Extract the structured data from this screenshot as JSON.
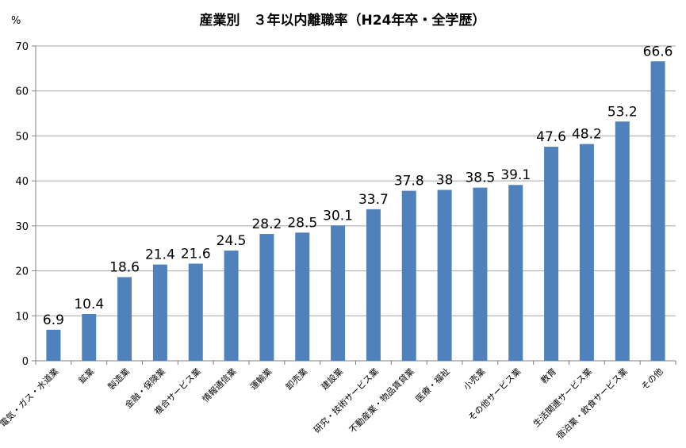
{
  "chart_data": {
    "type": "bar",
    "title": "産業別　３年以内離職率（H24年卒・全学歴）",
    "unit_label": "%",
    "ylim": [
      0,
      70
    ],
    "yticks": [
      0,
      10,
      20,
      30,
      40,
      50,
      60,
      70
    ],
    "grid": true,
    "legend": "none",
    "bar_color": "#4F81BD",
    "categories": [
      "電気・ガス・水道業",
      "鉱業",
      "製造業",
      "金融・保険業",
      "複合サービス業",
      "情報通信業",
      "運輸業",
      "卸売業",
      "建設業",
      "研究・技術サービス業",
      "不動産業・物品賃貸業",
      "医療・福祉",
      "小売業",
      "その他サービス業",
      "教育",
      "生活関連サービス業",
      "宿泊業・飲食サービス業",
      "その他"
    ],
    "values": [
      6.9,
      10.4,
      18.6,
      21.4,
      21.6,
      24.5,
      28.2,
      28.5,
      30.1,
      33.7,
      37.8,
      38,
      38.5,
      39.1,
      47.6,
      48.2,
      53.2,
      66.6
    ],
    "data_labels": [
      "6.9",
      "10.4",
      "18.6",
      "21.4",
      "21.6",
      "24.5",
      "28.2",
      "28.5",
      "30.1",
      "33.7",
      "37.8",
      "38",
      "38.5",
      "39.1",
      "47.6",
      "48.2",
      "53.2",
      "66.6"
    ]
  }
}
